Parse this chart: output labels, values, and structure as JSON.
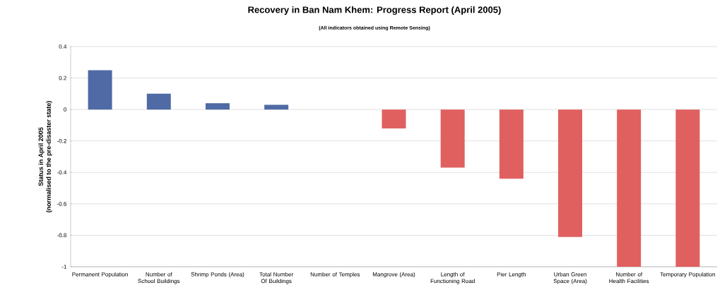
{
  "chart_data": {
    "type": "bar",
    "title": "Recovery in Ban Nam Khem: Progress Report (April 2005)",
    "subtitle": "(All indicators obtained using Remote Sensing)",
    "ylabel": "Status in April 2005\n(normalised to the pre-disaster state)",
    "categories": [
      "Permanent Population",
      "Number of School Buildings",
      "Shrimp Ponds (Area)",
      "Total Number Of Buildings",
      "Number of Temples",
      "Mangrove (Area)",
      "Length of Functioning Road",
      "Pier Length",
      "Urban Green Space (Area)",
      "Number of Health Facilities",
      "Temporary Population"
    ],
    "values": [
      0.25,
      0.1,
      0.04,
      0.03,
      0,
      -0.12,
      -0.37,
      -0.44,
      -0.81,
      -1,
      -1
    ],
    "colors": [
      "#4f6aa5",
      "#4f6aa5",
      "#4f6aa5",
      "#4f6aa5",
      "#4f6aa5",
      "#e06060",
      "#e06060",
      "#e06060",
      "#e06060",
      "#e06060",
      "#e06060"
    ],
    "ylim": [
      -1,
      0.4
    ],
    "yticks": [
      -1,
      -0.8,
      -0.6,
      -0.4,
      -0.2,
      0,
      0.2,
      0.4
    ],
    "grid": "y"
  }
}
